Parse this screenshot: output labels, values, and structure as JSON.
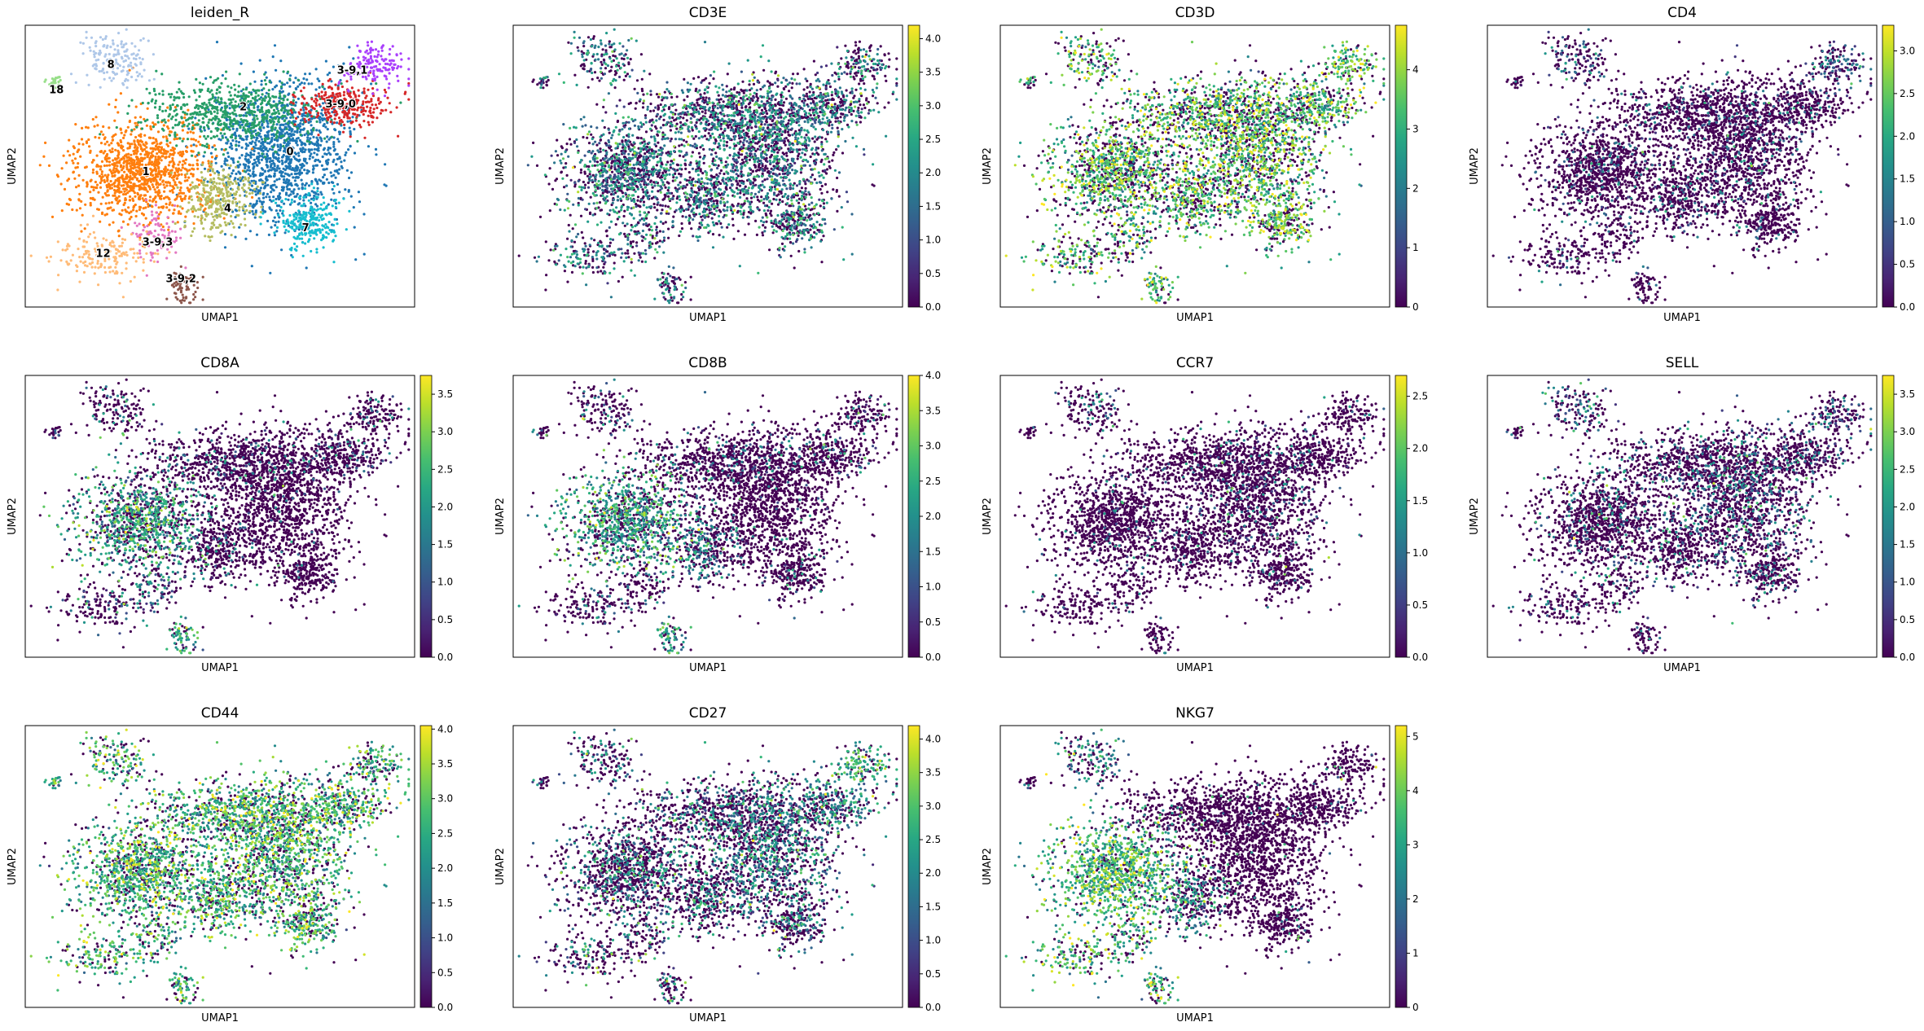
{
  "chart_data": [
    {
      "type": "scatter",
      "title": "leiden_R",
      "xlabel": "UMAP1",
      "ylabel": "UMAP2",
      "legend": "on data",
      "grid": false,
      "categories": [
        "0",
        "1",
        "2",
        "3-9,0",
        "3-9,1",
        "3-9,2",
        "3-9,3",
        "4",
        "7",
        "8",
        "12",
        "18"
      ],
      "category_colors": {
        "0": "#1f77b4",
        "1": "#ff7f0e",
        "2": "#279e68",
        "3-9,0": "#d62728",
        "3-9,1": "#aa40fc",
        "3-9,2": "#8c564b",
        "3-9,3": "#e377c2",
        "4": "#b5bd61",
        "7": "#17becf",
        "8": "#aec7e8",
        "12": "#ffbb78",
        "18": "#98df8a"
      }
    },
    {
      "type": "scatter",
      "title": "CD3E",
      "xlabel": "UMAP1",
      "ylabel": "UMAP2",
      "colorbar": {
        "min": 0.0,
        "max": 4.2,
        "ticks": [
          "0.0",
          "0.5",
          "1.0",
          "1.5",
          "2.0",
          "2.5",
          "3.0",
          "3.5",
          "4.0"
        ],
        "cmap": "viridis"
      }
    },
    {
      "type": "scatter",
      "title": "CD3D",
      "xlabel": "UMAP1",
      "ylabel": "UMAP2",
      "colorbar": {
        "min": 0,
        "max": 4.75,
        "ticks": [
          "0",
          "1",
          "2",
          "3",
          "4"
        ],
        "cmap": "viridis"
      }
    },
    {
      "type": "scatter",
      "title": "CD4",
      "xlabel": "UMAP1",
      "ylabel": "UMAP2",
      "colorbar": {
        "min": 0.0,
        "max": 3.3,
        "ticks": [
          "0.0",
          "0.5",
          "1.0",
          "1.5",
          "2.0",
          "2.5",
          "3.0"
        ],
        "cmap": "viridis"
      }
    },
    {
      "type": "scatter",
      "title": "CD8A",
      "xlabel": "UMAP1",
      "ylabel": "UMAP2",
      "colorbar": {
        "min": 0.0,
        "max": 3.75,
        "ticks": [
          "0.0",
          "0.5",
          "1.0",
          "1.5",
          "2.0",
          "2.5",
          "3.0",
          "3.5"
        ],
        "cmap": "viridis"
      }
    },
    {
      "type": "scatter",
      "title": "CD8B",
      "xlabel": "UMAP1",
      "ylabel": "UMAP2",
      "colorbar": {
        "min": 0.0,
        "max": 4.0,
        "ticks": [
          "0.0",
          "0.5",
          "1.0",
          "1.5",
          "2.0",
          "2.5",
          "3.0",
          "3.5",
          "4.0"
        ],
        "cmap": "viridis"
      }
    },
    {
      "type": "scatter",
      "title": "CCR7",
      "xlabel": "UMAP1",
      "ylabel": "UMAP2",
      "colorbar": {
        "min": 0.0,
        "max": 2.7,
        "ticks": [
          "0.0",
          "0.5",
          "1.0",
          "1.5",
          "2.0",
          "2.5"
        ],
        "cmap": "viridis"
      }
    },
    {
      "type": "scatter",
      "title": "SELL",
      "xlabel": "UMAP1",
      "ylabel": "UMAP2",
      "colorbar": {
        "min": 0.0,
        "max": 3.75,
        "ticks": [
          "0.0",
          "0.5",
          "1.0",
          "1.5",
          "2.0",
          "2.5",
          "3.0",
          "3.5"
        ],
        "cmap": "viridis"
      }
    },
    {
      "type": "scatter",
      "title": "CD44",
      "xlabel": "UMAP1",
      "ylabel": "UMAP2",
      "colorbar": {
        "min": 0.0,
        "max": 4.05,
        "ticks": [
          "0.0",
          "0.5",
          "1.0",
          "1.5",
          "2.0",
          "2.5",
          "3.0",
          "3.5",
          "4.0"
        ],
        "cmap": "viridis"
      }
    },
    {
      "type": "scatter",
      "title": "CD27",
      "xlabel": "UMAP1",
      "ylabel": "UMAP2",
      "colorbar": {
        "min": 0.0,
        "max": 4.2,
        "ticks": [
          "0.0",
          "0.5",
          "1.0",
          "1.5",
          "2.0",
          "2.5",
          "3.0",
          "3.5",
          "4.0"
        ],
        "cmap": "viridis"
      }
    },
    {
      "type": "scatter",
      "title": "NKG7",
      "xlabel": "UMAP1",
      "ylabel": "UMAP2",
      "colorbar": {
        "min": 0,
        "max": 5.2,
        "ticks": [
          "0",
          "1",
          "2",
          "3",
          "4",
          "5"
        ],
        "cmap": "viridis"
      }
    }
  ]
}
